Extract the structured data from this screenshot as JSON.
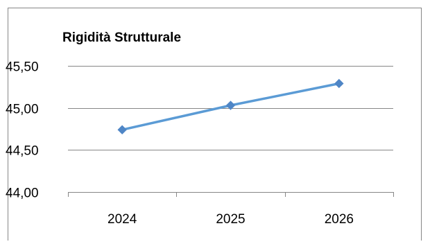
{
  "chart_data": {
    "type": "line",
    "title": "Rigidità Strutturale",
    "xlabel": "",
    "ylabel": "",
    "categories": [
      "2024",
      "2025",
      "2026"
    ],
    "series": [
      {
        "values": [
          44.74,
          45.03,
          45.29
        ]
      }
    ],
    "ylim": [
      44.0,
      45.5
    ],
    "yticks": [
      "44,00",
      "44,50",
      "45,00",
      "45,50"
    ],
    "grid": true,
    "legend": "none",
    "colors": {
      "line": "#5B9BD5",
      "marker": "#4F86C6",
      "grid": "#868686",
      "frame": "#868686",
      "text": "#000000"
    }
  }
}
